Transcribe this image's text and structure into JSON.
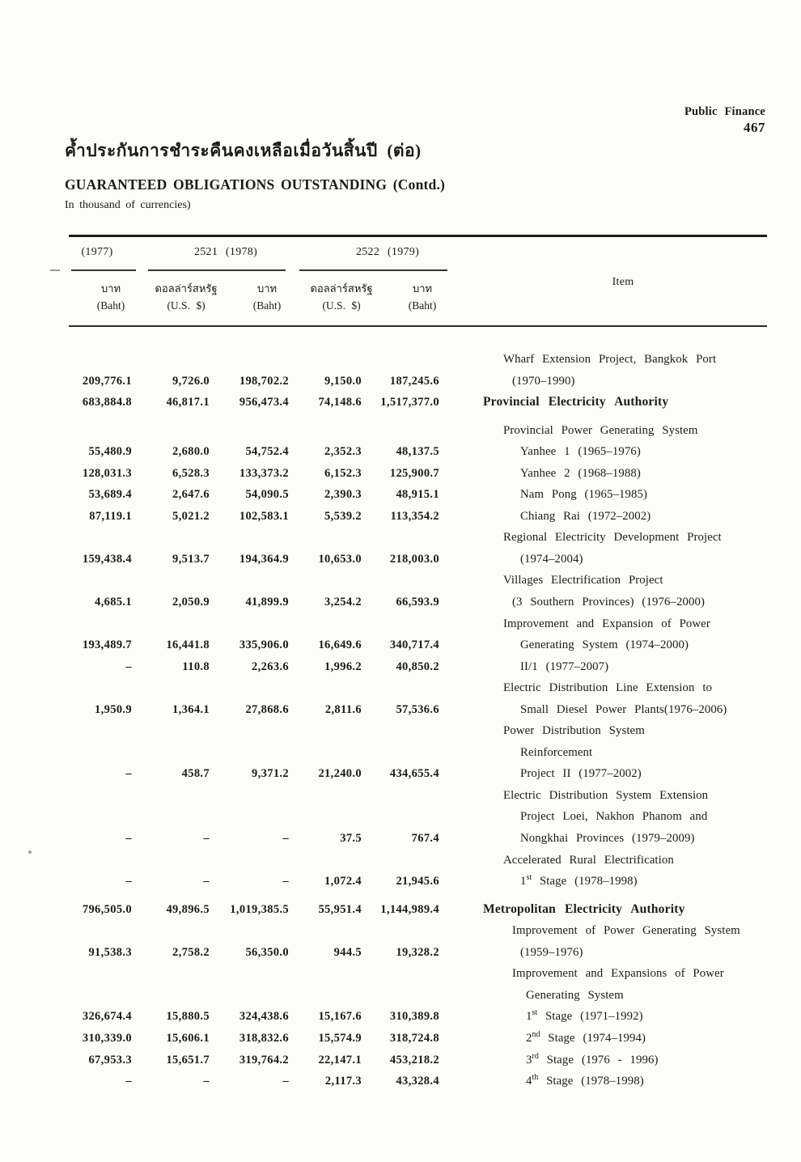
{
  "page_header": {
    "section": "Public Finance",
    "page_number": "467"
  },
  "title": {
    "thai": "ค้ำประกันการชำระคืนคงเหลือเมื่อวันสิ้นปี  (ต่อ)",
    "english": "GUARANTEED OBLIGATIONS OUTSTANDING (Contd.)",
    "unit_note": "In thousand of currencies)"
  },
  "table": {
    "year_groups": [
      {
        "label": "(1977)",
        "columns": 1
      },
      {
        "label": "2521 (1978)",
        "columns": 2
      },
      {
        "label": "2522 (1979)",
        "columns": 2
      }
    ],
    "column_headers": [
      {
        "thai": "บาท",
        "latin": "(Baht)"
      },
      {
        "thai": "ดอลล่าร์สหรัฐ",
        "latin": "(U.S. $)"
      },
      {
        "thai": "บาท",
        "latin": "(Baht)"
      },
      {
        "thai": "ดอลล่าร์สหรัฐ",
        "latin": "(U.S. $)"
      },
      {
        "thai": "บาท",
        "latin": "(Baht)"
      }
    ],
    "item_header": "Item",
    "rows": [
      {
        "values": [],
        "item": [
          "Wharf Extension Project, Bangkok Port"
        ],
        "indent": 1
      },
      {
        "values": [
          "209,776.1",
          "9,726.0",
          "198,702.2",
          "9,150.0",
          "187,245.6"
        ],
        "item": [
          "(1970–1990)"
        ],
        "indent": 2
      },
      {
        "values": [
          "683,884.8",
          "46,817.1",
          "956,473.4",
          "74,148.6",
          "1,517,377.0"
        ],
        "item": [
          "Provincial Electricity Authority"
        ],
        "bold": true,
        "indent": 0
      },
      {
        "values": [],
        "item": [
          "Provincial Power Generating System"
        ],
        "indent": 1,
        "spacer": true
      },
      {
        "values": [
          "55,480.9",
          "2,680.0",
          "54,752.4",
          "2,352.3",
          "48,137.5"
        ],
        "item": [
          "Yanhee 1 (1965–1976)"
        ],
        "indent": 3
      },
      {
        "values": [
          "128,031.3",
          "6,528.3",
          "133,373.2",
          "6,152.3",
          "125,900.7"
        ],
        "item": [
          "Yanhee 2 (1968–1988)"
        ],
        "indent": 3
      },
      {
        "values": [
          "53,689.4",
          "2,647.6",
          "54,090.5",
          "2,390.3",
          "48,915.1"
        ],
        "item": [
          "Nam Pong (1965–1985)"
        ],
        "indent": 3
      },
      {
        "values": [
          "87,119.1",
          "5,021.2",
          "102,583.1",
          "5,539.2",
          "113,354.2"
        ],
        "item": [
          "Chiang Rai (1972–2002)"
        ],
        "indent": 3
      },
      {
        "values": [],
        "item": [
          "Regional Electricity Development Project"
        ],
        "indent": 1
      },
      {
        "values": [
          "159,438.4",
          "9,513.7",
          "194,364.9",
          "10,653.0",
          "218,003.0"
        ],
        "item": [
          "(1974–2004)"
        ],
        "indent": 3
      },
      {
        "values": [],
        "item": [
          "Villages Electrification Project"
        ],
        "indent": 1
      },
      {
        "values": [
          "4,685.1",
          "2,050.9",
          "41,899.9",
          "3,254.2",
          "66,593.9"
        ],
        "item": [
          "(3 Southern Provinces) (1976–2000)"
        ],
        "indent": 2
      },
      {
        "values": [],
        "item": [
          "Improvement and Expansion of Power"
        ],
        "indent": 1
      },
      {
        "values": [
          "193,489.7",
          "16,441.8",
          "335,906.0",
          "16,649.6",
          "340,717.4"
        ],
        "item": [
          "Generating System (1974–2000)"
        ],
        "indent": 3
      },
      {
        "values": [
          "–",
          "110.8",
          "2,263.6",
          "1,996.2",
          "40,850.2"
        ],
        "item": [
          "II/1 (1977–2007)"
        ],
        "indent": 3
      },
      {
        "values": [],
        "item": [
          "Electric Distribution Line Extension to"
        ],
        "indent": 1
      },
      {
        "values": [
          "1,950.9",
          "1,364.1",
          "27,868.6",
          "2,811.6",
          "57,536.6"
        ],
        "item": [
          "Small Diesel Power Plants(1976–2006)"
        ],
        "indent": 3
      },
      {
        "values": [],
        "item": [
          "Power Distribution System"
        ],
        "indent": 1
      },
      {
        "values": [],
        "item": [
          "Reinforcement"
        ],
        "indent": 3
      },
      {
        "values": [
          "–",
          "458.7",
          "9,371.2",
          "21,240.0",
          "434,655.4"
        ],
        "item": [
          "Project II (1977–2002)"
        ],
        "indent": 3
      },
      {
        "values": [],
        "item": [
          "Electric Distribution System Extension"
        ],
        "indent": 1
      },
      {
        "values": [],
        "item": [
          "Project Loei, Nakhon Phanom and"
        ],
        "indent": 3
      },
      {
        "values": [
          "–",
          "–",
          "–",
          "37.5",
          "767.4"
        ],
        "item": [
          "Nongkhai Provinces (1979–2009)"
        ],
        "indent": 3
      },
      {
        "values": [],
        "item": [
          "Accelerated Rural Electrification"
        ],
        "indent": 1
      },
      {
        "values": [
          "–",
          "–",
          "–",
          "1,072.4",
          "21,945.6"
        ],
        "item": [
          "1",
          {
            "sup": "st"
          },
          " Stage (1978–1998)"
        ],
        "indent": 3
      },
      {
        "values": [
          "796,505.0",
          "49,896.5",
          "1,019,385.5",
          "55,951.4",
          "1,144,989.4"
        ],
        "item": [
          "Metropolitan Electricity Authority"
        ],
        "bold": true,
        "indent": 0,
        "spacer": true
      },
      {
        "values": [],
        "item": [
          "Improvement of Power Generating System"
        ],
        "indent": 2
      },
      {
        "values": [
          "91,538.3",
          "2,758.2",
          "56,350.0",
          "944.5",
          "19,328.2"
        ],
        "item": [
          "(1959–1976)"
        ],
        "indent": 3
      },
      {
        "values": [],
        "item": [
          "Improvement and Expansions of Power"
        ],
        "indent": 2
      },
      {
        "values": [],
        "item": [
          "Generating System"
        ],
        "indent": 4
      },
      {
        "values": [
          "326,674.4",
          "15,880.5",
          "324,438.6",
          "15,167.6",
          "310,389.8"
        ],
        "item": [
          "1",
          {
            "sup": "st"
          },
          " Stage (1971–1992)"
        ],
        "indent": 4
      },
      {
        "values": [
          "310,339.0",
          "15,606.1",
          "318,832.6",
          "15,574.9",
          "318,724.8"
        ],
        "item": [
          "2",
          {
            "sup": "nd"
          },
          " Stage (1974–1994)"
        ],
        "indent": 4
      },
      {
        "values": [
          "67,953.3",
          "15,651.7",
          "319,764.2",
          "22,147.1",
          "453,218.2"
        ],
        "item": [
          "3",
          {
            "sup": "rd"
          },
          " Stage (1976 - 1996)"
        ],
        "indent": 4
      },
      {
        "values": [
          "–",
          "–",
          "–",
          "2,117.3",
          "43,328.4"
        ],
        "item": [
          "4",
          {
            "sup": "th"
          },
          " Stage (1978–1998)"
        ],
        "indent": 4
      }
    ]
  }
}
